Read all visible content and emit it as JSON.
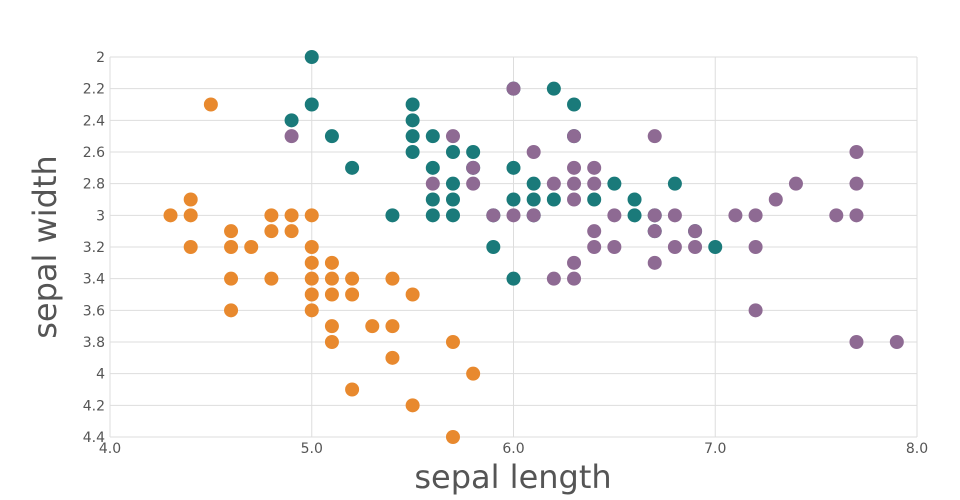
{
  "chart_data": {
    "type": "scatter",
    "xlabel": "sepal length",
    "ylabel": "sepal width",
    "xlim": [
      4.0,
      8.0
    ],
    "ylim": [
      2.0,
      4.4
    ],
    "y_axis_inverted": true,
    "grid": true,
    "legend": "none",
    "x_ticks": [
      "4.0",
      "5.0",
      "6.0",
      "7.0",
      "8.0"
    ],
    "y_ticks": [
      "2",
      "2.2",
      "2.4",
      "2.6",
      "2.8",
      "3",
      "3.2",
      "3.4",
      "3.6",
      "3.8",
      "4",
      "4.2",
      "4.4"
    ],
    "series": [
      {
        "color": "#e8892e",
        "points": [
          [
            4.3,
            3.0
          ],
          [
            4.4,
            2.9
          ],
          [
            4.4,
            3.0
          ],
          [
            4.4,
            3.2
          ],
          [
            4.5,
            2.3
          ],
          [
            4.6,
            3.1
          ],
          [
            4.6,
            3.2
          ],
          [
            4.6,
            3.4
          ],
          [
            4.6,
            3.6
          ],
          [
            4.7,
            3.2
          ],
          [
            4.8,
            3.0
          ],
          [
            4.8,
            3.1
          ],
          [
            4.8,
            3.4
          ],
          [
            4.9,
            3.0
          ],
          [
            4.9,
            3.1
          ],
          [
            5.0,
            3.0
          ],
          [
            5.0,
            3.2
          ],
          [
            5.0,
            3.3
          ],
          [
            5.0,
            3.4
          ],
          [
            5.0,
            3.5
          ],
          [
            5.0,
            3.6
          ],
          [
            5.1,
            3.3
          ],
          [
            5.1,
            3.4
          ],
          [
            5.1,
            3.5
          ],
          [
            5.1,
            3.7
          ],
          [
            5.1,
            3.8
          ],
          [
            5.2,
            3.4
          ],
          [
            5.2,
            3.5
          ],
          [
            5.2,
            4.1
          ],
          [
            5.3,
            3.7
          ],
          [
            5.4,
            3.4
          ],
          [
            5.4,
            3.7
          ],
          [
            5.4,
            3.9
          ],
          [
            5.5,
            3.5
          ],
          [
            5.5,
            4.2
          ],
          [
            5.7,
            3.8
          ],
          [
            5.7,
            4.4
          ],
          [
            5.8,
            4.0
          ]
        ]
      },
      {
        "color": "#1a7a7a",
        "points": [
          [
            4.9,
            2.4
          ],
          [
            5.0,
            2.0
          ],
          [
            5.0,
            2.3
          ],
          [
            5.1,
            2.5
          ],
          [
            5.2,
            2.7
          ],
          [
            5.4,
            3.0
          ],
          [
            5.5,
            2.3
          ],
          [
            5.5,
            2.4
          ],
          [
            5.5,
            2.5
          ],
          [
            5.5,
            2.6
          ],
          [
            5.6,
            2.5
          ],
          [
            5.6,
            2.7
          ],
          [
            5.6,
            2.9
          ],
          [
            5.6,
            3.0
          ],
          [
            5.7,
            2.6
          ],
          [
            5.7,
            2.8
          ],
          [
            5.7,
            2.9
          ],
          [
            5.7,
            3.0
          ],
          [
            5.8,
            2.6
          ],
          [
            5.8,
            2.7
          ],
          [
            5.9,
            3.0
          ],
          [
            5.9,
            3.2
          ],
          [
            6.0,
            2.2
          ],
          [
            6.0,
            2.7
          ],
          [
            6.0,
            2.9
          ],
          [
            6.0,
            3.4
          ],
          [
            6.1,
            2.8
          ],
          [
            6.1,
            2.9
          ],
          [
            6.1,
            3.0
          ],
          [
            6.2,
            2.2
          ],
          [
            6.2,
            2.9
          ],
          [
            6.3,
            2.3
          ],
          [
            6.3,
            2.5
          ],
          [
            6.4,
            2.9
          ],
          [
            6.5,
            2.8
          ],
          [
            6.6,
            2.9
          ],
          [
            6.6,
            3.0
          ],
          [
            6.7,
            3.0
          ],
          [
            6.7,
            3.1
          ],
          [
            6.8,
            2.8
          ],
          [
            6.9,
            3.1
          ],
          [
            7.0,
            3.2
          ]
        ]
      },
      {
        "color": "#8e6a93",
        "points": [
          [
            4.9,
            2.5
          ],
          [
            5.7,
            2.5
          ],
          [
            5.6,
            2.8
          ],
          [
            5.8,
            2.7
          ],
          [
            5.8,
            2.8
          ],
          [
            5.9,
            3.0
          ],
          [
            6.0,
            2.2
          ],
          [
            6.0,
            3.0
          ],
          [
            6.1,
            2.6
          ],
          [
            6.1,
            3.0
          ],
          [
            6.2,
            2.8
          ],
          [
            6.2,
            3.4
          ],
          [
            6.3,
            2.5
          ],
          [
            6.3,
            2.7
          ],
          [
            6.3,
            2.8
          ],
          [
            6.3,
            2.9
          ],
          [
            6.3,
            3.3
          ],
          [
            6.3,
            3.4
          ],
          [
            6.4,
            2.7
          ],
          [
            6.4,
            2.8
          ],
          [
            6.4,
            3.1
          ],
          [
            6.4,
            3.2
          ],
          [
            6.5,
            3.0
          ],
          [
            6.5,
            3.2
          ],
          [
            6.7,
            2.5
          ],
          [
            6.7,
            3.0
          ],
          [
            6.7,
            3.1
          ],
          [
            6.7,
            3.3
          ],
          [
            6.8,
            3.0
          ],
          [
            6.8,
            3.2
          ],
          [
            6.9,
            3.1
          ],
          [
            6.9,
            3.2
          ],
          [
            7.1,
            3.0
          ],
          [
            7.2,
            3.0
          ],
          [
            7.2,
            3.2
          ],
          [
            7.2,
            3.6
          ],
          [
            7.3,
            2.9
          ],
          [
            7.4,
            2.8
          ],
          [
            7.6,
            3.0
          ],
          [
            7.7,
            2.6
          ],
          [
            7.7,
            2.8
          ],
          [
            7.7,
            3.0
          ],
          [
            7.7,
            3.8
          ],
          [
            7.9,
            3.8
          ]
        ]
      }
    ]
  }
}
